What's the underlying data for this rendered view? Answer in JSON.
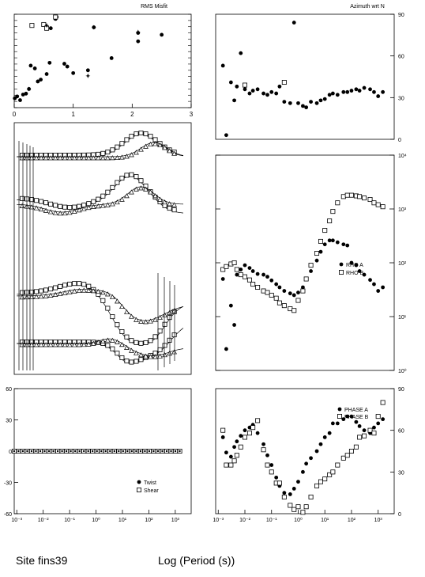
{
  "site_label": "Site fins39",
  "xaxis_label": "Log (Period (s))",
  "chart_data": [
    {
      "id": "rms",
      "type": "scatter",
      "title": "RMS Misfit",
      "xlim": [
        0,
        3
      ],
      "xticks": [
        "0",
        "1",
        "2",
        "3"
      ],
      "grid": false,
      "series": [
        {
          "marker": "dot",
          "points": [
            [
              0.01,
              0.1
            ],
            [
              0.05,
              0.12
            ],
            [
              0.1,
              0.08
            ],
            [
              0.15,
              0.14
            ],
            [
              0.2,
              0.15
            ],
            [
              0.25,
              0.2
            ],
            [
              0.28,
              0.45
            ],
            [
              0.35,
              0.42
            ],
            [
              0.4,
              0.28
            ],
            [
              0.45,
              0.3
            ],
            [
              0.55,
              0.36
            ],
            [
              0.6,
              0.48
            ],
            [
              0.62,
              0.85
            ],
            [
              0.7,
              0.95
            ],
            [
              0.72,
              0.97
            ],
            [
              0.85,
              0.47
            ],
            [
              0.9,
              0.44
            ],
            [
              1.0,
              0.37
            ],
            [
              1.25,
              0.4
            ],
            [
              1.35,
              0.86
            ],
            [
              1.65,
              0.53
            ],
            [
              2.1,
              0.8
            ],
            [
              2.1,
              0.71
            ],
            [
              2.5,
              0.78
            ]
          ]
        },
        {
          "marker": "square",
          "points": [
            [
              0.3,
              0.88
            ],
            [
              0.5,
              0.89
            ],
            [
              0.55,
              0.85
            ],
            [
              0.7,
              0.97
            ]
          ]
        },
        {
          "marker": "star",
          "points": [
            [
              0.25,
              0.2
            ],
            [
              0.55,
              0.88
            ],
            [
              1.25,
              0.34
            ],
            [
              1.35,
              0.86
            ],
            [
              2.1,
              0.81
            ]
          ]
        }
      ]
    },
    {
      "id": "azimuth",
      "type": "scatter",
      "title": "Azimuth wrt N",
      "xlog": true,
      "ylim": [
        0,
        90
      ],
      "yticks": [
        "0",
        "30",
        "60",
        "90"
      ],
      "series": [
        {
          "marker": "dot",
          "x": [
            0.0015,
            0.002,
            0.003,
            0.004,
            0.005,
            0.007,
            0.01,
            0.015,
            0.02,
            0.03,
            0.05,
            0.07,
            0.1,
            0.15,
            0.2,
            0.3,
            0.5,
            0.7,
            1,
            1.5,
            2,
            3,
            5,
            7,
            10,
            15,
            20,
            30,
            50,
            70,
            100,
            150,
            200,
            300,
            500,
            700,
            1000,
            1500
          ],
          "y": [
            53,
            3,
            41,
            28,
            38,
            62,
            36,
            33,
            35,
            36,
            33,
            32,
            34,
            33,
            38,
            27,
            26,
            84,
            26,
            24,
            23,
            27,
            26,
            28,
            29,
            32,
            33,
            32,
            34,
            34,
            35,
            36,
            35,
            37,
            36,
            34,
            31,
            34
          ]
        },
        {
          "marker": "square",
          "x": [
            0.01,
            0.3
          ],
          "y": [
            39,
            41
          ]
        }
      ]
    },
    {
      "id": "tipper",
      "type": "line",
      "xlog": true,
      "series_note": "response curves"
    },
    {
      "id": "rho",
      "type": "scatter",
      "xlog": true,
      "ylog": true,
      "ylim": [
        1,
        10000
      ],
      "yticks": [
        "10⁰",
        "10¹",
        "10²",
        "10³",
        "10⁴"
      ],
      "legend_position": "right",
      "series": [
        {
          "name": "RHO A",
          "marker": "dot",
          "x": [
            0.0015,
            0.002,
            0.003,
            0.004,
            0.005,
            0.007,
            0.01,
            0.015,
            0.02,
            0.03,
            0.05,
            0.07,
            0.1,
            0.15,
            0.2,
            0.3,
            0.5,
            0.7,
            1,
            1.5,
            2,
            3,
            5,
            7,
            10,
            15,
            20,
            30,
            50,
            70,
            100,
            150,
            200,
            300,
            500,
            700,
            1000,
            1500
          ],
          "y": [
            50,
            2.5,
            16,
            7,
            60,
            75,
            90,
            80,
            70,
            62,
            60,
            55,
            47,
            40,
            35,
            30,
            27,
            25,
            28,
            35,
            50,
            70,
            110,
            160,
            220,
            260,
            260,
            240,
            220,
            210,
            100,
            90,
            70,
            60,
            48,
            40,
            30,
            35
          ]
        },
        {
          "name": "RHO B",
          "marker": "square",
          "x": [
            0.0015,
            0.002,
            0.003,
            0.004,
            0.005,
            0.007,
            0.01,
            0.015,
            0.02,
            0.03,
            0.05,
            0.07,
            0.1,
            0.15,
            0.2,
            0.3,
            0.5,
            0.7,
            1,
            1.5,
            2,
            3,
            5,
            7,
            10,
            15,
            20,
            30,
            50,
            70,
            100,
            150,
            200,
            300,
            500,
            700,
            1000,
            1500
          ],
          "y": [
            75,
            85,
            95,
            100,
            75,
            60,
            55,
            48,
            40,
            35,
            30,
            28,
            25,
            22,
            18,
            16,
            14,
            13,
            20,
            30,
            50,
            90,
            150,
            250,
            400,
            600,
            900,
            1300,
            1700,
            1800,
            1800,
            1750,
            1700,
            1600,
            1500,
            1300,
            1200,
            1100
          ]
        }
      ]
    },
    {
      "id": "twist",
      "type": "scatter",
      "xlog": true,
      "ylim": [
        -60,
        60
      ],
      "yticks": [
        "60",
        "30",
        "0",
        "-30",
        "-60"
      ],
      "xticks": [
        "10⁻³",
        "10⁻²",
        "10⁻¹",
        "10⁰",
        "10¹",
        "10²",
        "10³"
      ],
      "legend_position": "bottom-right",
      "series": [
        {
          "name": "Twist",
          "marker": "dot",
          "value": 0
        },
        {
          "name": "Shear",
          "marker": "square",
          "value": 0
        }
      ]
    },
    {
      "id": "phase",
      "type": "scatter",
      "xlog": true,
      "ylim": [
        0,
        90
      ],
      "yticks": [
        "0",
        "30",
        "60",
        "90"
      ],
      "xticks": [
        "10⁻³",
        "10⁻²",
        "10⁻¹",
        "10⁰",
        "10¹",
        "10²",
        "10³"
      ],
      "legend_position": "top-right",
      "series": [
        {
          "name": "PHASE A",
          "marker": "dot",
          "x": [
            0.0015,
            0.002,
            0.003,
            0.004,
            0.005,
            0.007,
            0.01,
            0.015,
            0.02,
            0.03,
            0.05,
            0.07,
            0.1,
            0.15,
            0.2,
            0.3,
            0.5,
            0.7,
            1,
            1.5,
            2,
            3,
            5,
            7,
            10,
            15,
            20,
            30,
            50,
            70,
            100,
            150,
            200,
            300,
            500,
            700,
            1000,
            1500
          ],
          "y": [
            55,
            44,
            41,
            48,
            52,
            56,
            60,
            62,
            64,
            58,
            50,
            42,
            35,
            26,
            20,
            15,
            14,
            18,
            23,
            30,
            36,
            40,
            45,
            50,
            55,
            58,
            65,
            65,
            68,
            70,
            70,
            66,
            63,
            60,
            58,
            62,
            65,
            68
          ]
        },
        {
          "name": "PHASE B",
          "marker": "square",
          "x": [
            0.0015,
            0.002,
            0.003,
            0.004,
            0.005,
            0.007,
            0.01,
            0.015,
            0.02,
            0.03,
            0.05,
            0.07,
            0.1,
            0.15,
            0.2,
            0.3,
            0.5,
            0.7,
            1,
            1.5,
            2,
            3,
            5,
            7,
            10,
            15,
            20,
            30,
            50,
            70,
            100,
            150,
            200,
            300,
            500,
            700,
            1000,
            1500
          ],
          "y": [
            60,
            35,
            35,
            38,
            42,
            48,
            55,
            58,
            62,
            67,
            46,
            35,
            30,
            22,
            22,
            12,
            6,
            3,
            5,
            1,
            5,
            12,
            20,
            23,
            25,
            28,
            30,
            35,
            40,
            42,
            45,
            48,
            55,
            56,
            60,
            58,
            70,
            80
          ]
        }
      ]
    }
  ]
}
